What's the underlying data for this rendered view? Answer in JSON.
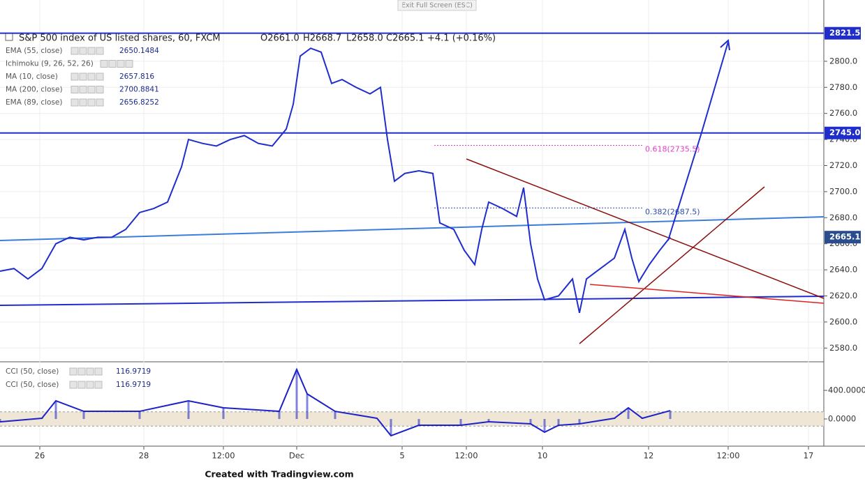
{
  "header": {
    "screen_note": "Exit Full Screen (ESC)",
    "title": "S&P 500 index of US listed shares, 60, FXCM",
    "open": "O2661.0",
    "high": "H2668.7",
    "low": "L2658.0",
    "close": "C2665.1",
    "change": "+4.1 (+0.16%)"
  },
  "indicators": [
    {
      "name": "EMA (55, close)",
      "value": 2650.1484
    },
    {
      "name": "Ichimoku (9, 26, 52, 26)"
    },
    {
      "name": "MA (10, close)",
      "value": 2657.816
    },
    {
      "name": "MA (200, close)",
      "value": 2700.8841
    },
    {
      "name": "EMA (89, close)",
      "value": 2656.8252
    }
  ],
  "footer": "Created with Tradingview.com",
  "chart_data": [
    {
      "type": "line",
      "color": "#1f2dcc",
      "x": [
        0,
        2,
        4,
        6,
        8,
        10,
        12,
        14,
        16,
        18,
        20,
        22,
        24,
        26,
        27,
        29,
        31,
        33,
        35,
        37,
        39,
        41,
        42,
        43,
        44.5,
        46,
        47.5,
        49,
        51,
        53,
        54.5,
        55.5,
        56.5,
        58,
        60,
        62,
        63,
        65,
        66.5,
        68,
        69,
        70,
        72,
        74,
        75,
        76,
        77,
        78,
        80,
        82,
        83,
        84,
        86,
        88,
        89.5,
        90.5,
        91.5,
        93,
        94.5,
        96
      ],
      "values": [
        2639,
        2641,
        2633,
        2641,
        2660,
        2665,
        2663,
        2665,
        2665,
        2671,
        2684,
        2687,
        2692,
        2719,
        2740,
        2737,
        2735,
        2740,
        2743,
        2737,
        2735,
        2748,
        2767,
        2804,
        2810,
        2807,
        2783,
        2786,
        2780,
        2775,
        2780,
        2740,
        2708,
        2714,
        2716,
        2714,
        2676,
        2671,
        2655,
        2644,
        2671,
        2692,
        2687,
        2681,
        2703,
        2660,
        2633,
        2617,
        2620,
        2633,
        2607,
        2633,
        2641,
        2649,
        2671,
        2649,
        2631,
        2644,
        2655,
        2665.1
      ],
      "xlim": [
        0,
        118
      ],
      "xticks": [
        {
          "value": 5.7,
          "label": "26"
        },
        {
          "value": 20.6,
          "label": "28"
        },
        {
          "value": 32,
          "label": "12:00"
        },
        {
          "value": 42.5,
          "label": "Dec"
        },
        {
          "value": 57.6,
          "label": "5"
        },
        {
          "value": 66.8,
          "label": "12:00"
        },
        {
          "value": 77.7,
          "label": "10"
        },
        {
          "value": 92.9,
          "label": "12"
        },
        {
          "value": 104.3,
          "label": "12:00"
        },
        {
          "value": 115.8,
          "label": "17"
        }
      ],
      "ylim": [
        2570,
        2847
      ],
      "yticks": [
        {
          "value": 2580,
          "label": "2580.0"
        },
        {
          "value": 2600,
          "label": "2600.0"
        },
        {
          "value": 2620,
          "label": "2620.0"
        },
        {
          "value": 2640,
          "label": "2640.0"
        },
        {
          "value": 2660,
          "label": "2660.0"
        },
        {
          "value": 2680,
          "label": "2680.0"
        },
        {
          "value": 2700,
          "label": "2700.0"
        },
        {
          "value": 2720,
          "label": "2720.0"
        },
        {
          "value": 2740,
          "label": "2740.0"
        },
        {
          "value": 2760,
          "label": "2760.0"
        },
        {
          "value": 2780,
          "label": "2780.0"
        },
        {
          "value": 2800,
          "label": "2800.0"
        }
      ],
      "grid": true,
      "levels": [
        {
          "value": 2821.5,
          "label": "2821.5"
        },
        {
          "value": 2745,
          "label": "2745.0"
        }
      ],
      "level_color": "#1f2dcc",
      "last_price": {
        "value": 2665.1,
        "label": "2665.1"
      },
      "fib_levels": [
        {
          "value": 2735.5,
          "label": "0.618(2735.5)",
          "color": "#e040c8"
        },
        {
          "value": 2687.5,
          "label": "0.382(2687.5)",
          "color": "#2c4ea8"
        }
      ]
    },
    {
      "type": "bar",
      "indicators": [
        {
          "name": "CCI (50, close)",
          "value": 116.9719
        },
        {
          "name": "CCI (50, close)",
          "value": 116.9719
        }
      ],
      "color": "#1c22c8",
      "x": [
        0,
        6,
        8,
        12,
        20,
        27,
        32,
        40,
        42.5,
        44,
        48,
        54,
        56,
        60,
        66,
        70,
        76,
        78,
        80,
        83,
        88,
        90,
        92,
        96
      ],
      "values": [
        -40,
        10,
        254,
        107,
        107,
        254,
        156,
        107,
        693,
        351,
        107,
        10,
        -234,
        -88,
        -88,
        -39,
        -68,
        -185,
        -88,
        -68,
        10,
        156,
        10,
        116.9719
      ],
      "band": [
        -100,
        100
      ],
      "band_color": "#efe6d6",
      "ylim": [
        -380,
        790
      ],
      "yticks": [
        {
          "value": 0,
          "label": "0.0000"
        },
        {
          "value": 400,
          "label": "400.0000"
        }
      ]
    }
  ]
}
